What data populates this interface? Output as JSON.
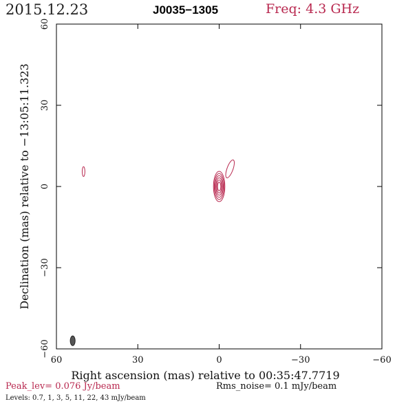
{
  "header": {
    "date": "2015.12.23",
    "source": "J0035−1305",
    "frequency": "Freq: 4.3 GHz"
  },
  "footer": {
    "peak_level": "Peak_lev=  0.076 Jy/beam",
    "rms_noise": "Rms_noise=   0.1 mJy/beam",
    "levels": "Levels: 0.7,    1,    3,    5,   11,   22,   43  mJy/beam"
  },
  "colors": {
    "contour": "#b8284f",
    "beam": "#555555",
    "axes": "#000000"
  },
  "chart_data": {
    "type": "contour",
    "xlabel": "Right ascension (mas) relative to 00:35:47.7719",
    "ylabel": "Declination (mas) relative to −13:05:11.323",
    "xlim": [
      60,
      -60
    ],
    "ylim": [
      -60,
      60
    ],
    "x_ticks": [
      60,
      30,
      0,
      -30,
      -60
    ],
    "x_tick_labels": [
      "60",
      "30",
      "0",
      "−30",
      "−60"
    ],
    "y_ticks": [
      -60,
      -30,
      0,
      30,
      60
    ],
    "y_tick_labels": [
      "−60",
      "−30",
      "0",
      "30",
      "60"
    ],
    "contour_levels_mJy": [
      0.7,
      1,
      3,
      5,
      11,
      22,
      43
    ],
    "peak_Jy_per_beam": 0.076,
    "rms_mJy_per_beam": 0.1,
    "core": {
      "ra": 0.0,
      "dec": 0.0,
      "radii": [
        [
          2.1,
          5.6
        ],
        [
          1.8,
          4.8
        ],
        [
          1.5,
          4.0
        ],
        [
          1.2,
          3.2
        ],
        [
          0.9,
          2.4
        ],
        [
          0.6,
          1.6
        ]
      ]
    },
    "jet_component": {
      "ra": -4.0,
      "dec": 6.5,
      "a": 1.1,
      "b": 3.5,
      "angle_deg": 20
    },
    "isolated_component": {
      "ra": 50.0,
      "dec": 5.5,
      "a": 0.5,
      "b": 1.8
    },
    "beam": {
      "ra": 54.0,
      "dec": -57.0,
      "a": 0.9,
      "b": 1.8
    }
  }
}
